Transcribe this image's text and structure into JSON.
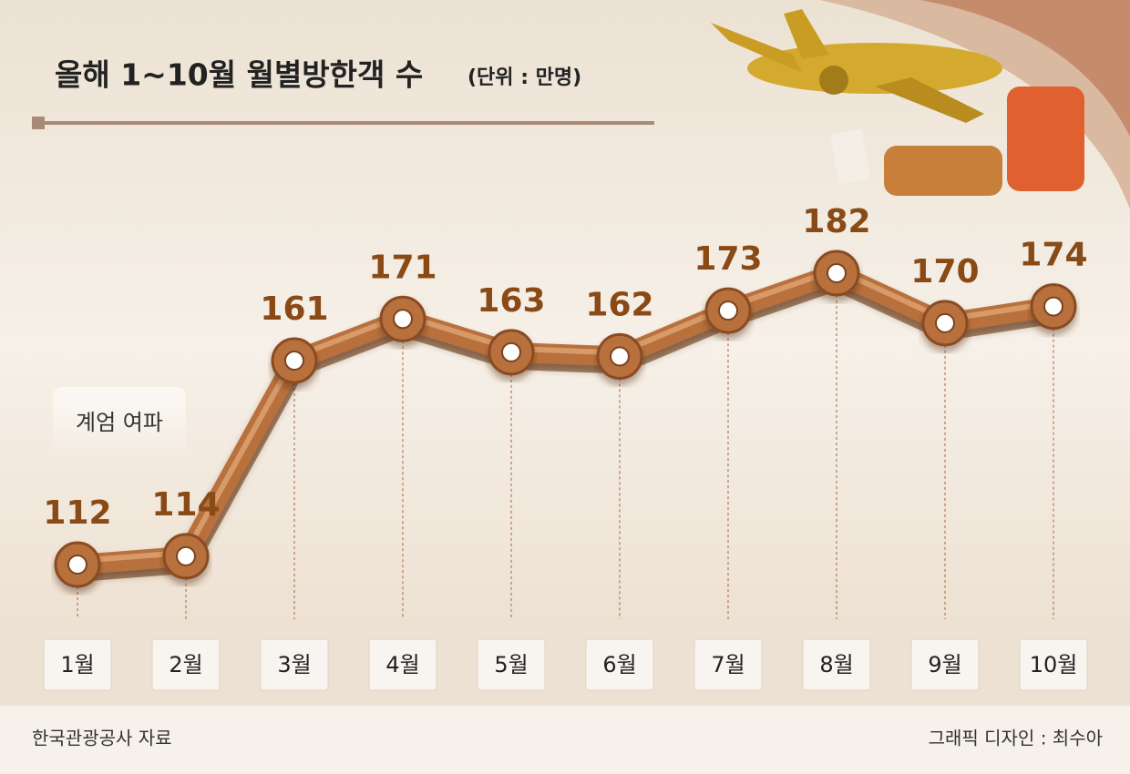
{
  "chart_data": {
    "type": "line",
    "title": "올해 1~10월 월별방한객 수",
    "subtitle": "(단위 : 만명)",
    "annotation": "계엄 여파",
    "categories": [
      "1월",
      "2월",
      "3월",
      "4월",
      "5월",
      "6월",
      "7월",
      "8월",
      "9월",
      "10월"
    ],
    "values": [
      112,
      114,
      161,
      171,
      163,
      162,
      173,
      182,
      170,
      174
    ],
    "color": "#b86f3c",
    "source": "한국관광공사 자료",
    "credit": "그래픽 디자인 : 최수아"
  }
}
